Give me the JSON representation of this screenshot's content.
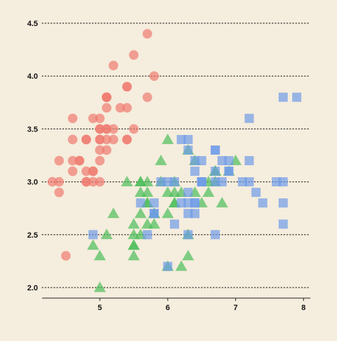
{
  "colors": {
    "background": "#f5eddd",
    "grid": "#333333",
    "axis": "#222222",
    "tick_label": "#111111"
  },
  "chart_data": {
    "type": "scatter",
    "title": "",
    "xlabel": "",
    "ylabel": "",
    "xlim": [
      4.15,
      8.1
    ],
    "ylim": [
      1.9,
      4.6
    ],
    "x_ticks": [
      5,
      6,
      7,
      8
    ],
    "x_tick_labels": [
      "5",
      "6",
      "7",
      "8"
    ],
    "y_ticks": [
      2.0,
      2.5,
      3.0,
      3.5,
      4.0,
      4.5
    ],
    "y_tick_labels": [
      "2.0",
      "2.5",
      "3.0",
      "3.5",
      "4.0",
      "4.5"
    ],
    "grid": "horizontal dotted lines at y ticks",
    "legend": "none",
    "series": [
      {
        "marker": "circle",
        "color": "#f07a70",
        "points": [
          [
            5.1,
            3.5
          ],
          [
            4.9,
            3.0
          ],
          [
            4.7,
            3.2
          ],
          [
            4.6,
            3.1
          ],
          [
            5.0,
            3.6
          ],
          [
            5.4,
            3.9
          ],
          [
            4.6,
            3.4
          ],
          [
            5.0,
            3.4
          ],
          [
            4.4,
            2.9
          ],
          [
            4.9,
            3.1
          ],
          [
            5.4,
            3.7
          ],
          [
            4.8,
            3.4
          ],
          [
            4.8,
            3.0
          ],
          [
            4.3,
            3.0
          ],
          [
            5.8,
            4.0
          ],
          [
            5.7,
            4.4
          ],
          [
            5.4,
            3.9
          ],
          [
            5.1,
            3.5
          ],
          [
            5.7,
            3.8
          ],
          [
            5.1,
            3.8
          ],
          [
            5.4,
            3.4
          ],
          [
            5.1,
            3.7
          ],
          [
            4.6,
            3.6
          ],
          [
            5.1,
            3.3
          ],
          [
            4.8,
            3.4
          ],
          [
            5.0,
            3.0
          ],
          [
            5.0,
            3.4
          ],
          [
            5.2,
            3.5
          ],
          [
            5.2,
            3.4
          ],
          [
            4.7,
            3.2
          ],
          [
            4.8,
            3.1
          ],
          [
            5.4,
            3.4
          ],
          [
            5.2,
            4.1
          ],
          [
            5.5,
            4.2
          ],
          [
            4.9,
            3.1
          ],
          [
            5.0,
            3.2
          ],
          [
            5.5,
            3.5
          ],
          [
            4.9,
            3.6
          ],
          [
            4.4,
            3.0
          ],
          [
            5.1,
            3.4
          ],
          [
            5.0,
            3.5
          ],
          [
            4.5,
            2.3
          ],
          [
            4.4,
            3.2
          ],
          [
            5.0,
            3.5
          ],
          [
            5.1,
            3.8
          ],
          [
            4.8,
            3.0
          ],
          [
            5.1,
            3.8
          ],
          [
            4.6,
            3.2
          ],
          [
            5.3,
            3.7
          ],
          [
            5.0,
            3.3
          ]
        ]
      },
      {
        "marker": "triangle",
        "color": "#4cbd5a",
        "points": [
          [
            7.0,
            3.2
          ],
          [
            6.4,
            3.2
          ],
          [
            6.9,
            3.1
          ],
          [
            5.5,
            2.3
          ],
          [
            6.5,
            2.8
          ],
          [
            5.7,
            2.8
          ],
          [
            6.3,
            3.3
          ],
          [
            4.9,
            2.4
          ],
          [
            6.6,
            2.9
          ],
          [
            5.2,
            2.7
          ],
          [
            5.0,
            2.0
          ],
          [
            5.9,
            3.0
          ],
          [
            6.0,
            2.2
          ],
          [
            6.1,
            2.9
          ],
          [
            5.6,
            2.9
          ],
          [
            6.7,
            3.1
          ],
          [
            5.6,
            3.0
          ],
          [
            5.8,
            2.7
          ],
          [
            6.2,
            2.2
          ],
          [
            5.6,
            2.5
          ],
          [
            5.9,
            3.2
          ],
          [
            6.1,
            2.8
          ],
          [
            6.3,
            2.5
          ],
          [
            6.1,
            2.8
          ],
          [
            6.4,
            2.9
          ],
          [
            6.6,
            3.0
          ],
          [
            6.8,
            2.8
          ],
          [
            6.7,
            3.0
          ],
          [
            6.0,
            2.9
          ],
          [
            5.7,
            2.6
          ],
          [
            5.5,
            2.4
          ],
          [
            5.5,
            2.4
          ],
          [
            5.8,
            2.7
          ],
          [
            6.0,
            2.7
          ],
          [
            5.4,
            3.0
          ],
          [
            6.0,
            3.4
          ],
          [
            6.7,
            3.1
          ],
          [
            6.3,
            2.3
          ],
          [
            5.6,
            3.0
          ],
          [
            5.5,
            2.5
          ],
          [
            5.5,
            2.6
          ],
          [
            6.1,
            3.0
          ],
          [
            5.8,
            2.6
          ],
          [
            5.0,
            2.3
          ],
          [
            5.6,
            2.7
          ],
          [
            5.7,
            3.0
          ],
          [
            5.7,
            2.9
          ],
          [
            6.2,
            2.9
          ],
          [
            5.1,
            2.5
          ],
          [
            5.7,
            2.8
          ]
        ]
      },
      {
        "marker": "square",
        "color": "#6f9be8",
        "points": [
          [
            6.3,
            3.3
          ],
          [
            5.8,
            2.7
          ],
          [
            7.1,
            3.0
          ],
          [
            6.3,
            2.9
          ],
          [
            6.5,
            3.0
          ],
          [
            7.6,
            3.0
          ],
          [
            4.9,
            2.5
          ],
          [
            7.3,
            2.9
          ],
          [
            6.7,
            2.5
          ],
          [
            7.2,
            3.6
          ],
          [
            6.5,
            3.2
          ],
          [
            6.4,
            2.7
          ],
          [
            6.8,
            3.0
          ],
          [
            5.7,
            2.5
          ],
          [
            5.8,
            2.8
          ],
          [
            6.4,
            3.2
          ],
          [
            6.5,
            3.0
          ],
          [
            7.7,
            3.8
          ],
          [
            7.7,
            2.6
          ],
          [
            6.0,
            2.2
          ],
          [
            6.9,
            3.2
          ],
          [
            5.6,
            2.8
          ],
          [
            7.7,
            2.8
          ],
          [
            6.3,
            2.7
          ],
          [
            6.7,
            3.3
          ],
          [
            7.2,
            3.2
          ],
          [
            6.2,
            2.8
          ],
          [
            6.1,
            3.0
          ],
          [
            6.4,
            2.8
          ],
          [
            7.2,
            3.0
          ],
          [
            7.4,
            2.8
          ],
          [
            7.9,
            3.8
          ],
          [
            6.4,
            2.8
          ],
          [
            6.3,
            2.8
          ],
          [
            6.1,
            2.6
          ],
          [
            7.7,
            3.0
          ],
          [
            6.3,
            3.4
          ],
          [
            6.4,
            3.1
          ],
          [
            6.0,
            3.0
          ],
          [
            6.9,
            3.1
          ],
          [
            6.7,
            3.1
          ],
          [
            6.9,
            3.1
          ],
          [
            5.8,
            2.7
          ],
          [
            6.8,
            3.2
          ],
          [
            6.7,
            3.3
          ],
          [
            6.7,
            3.0
          ],
          [
            6.3,
            2.5
          ],
          [
            6.5,
            3.0
          ],
          [
            6.2,
            3.4
          ],
          [
            5.9,
            3.0
          ]
        ]
      }
    ]
  }
}
